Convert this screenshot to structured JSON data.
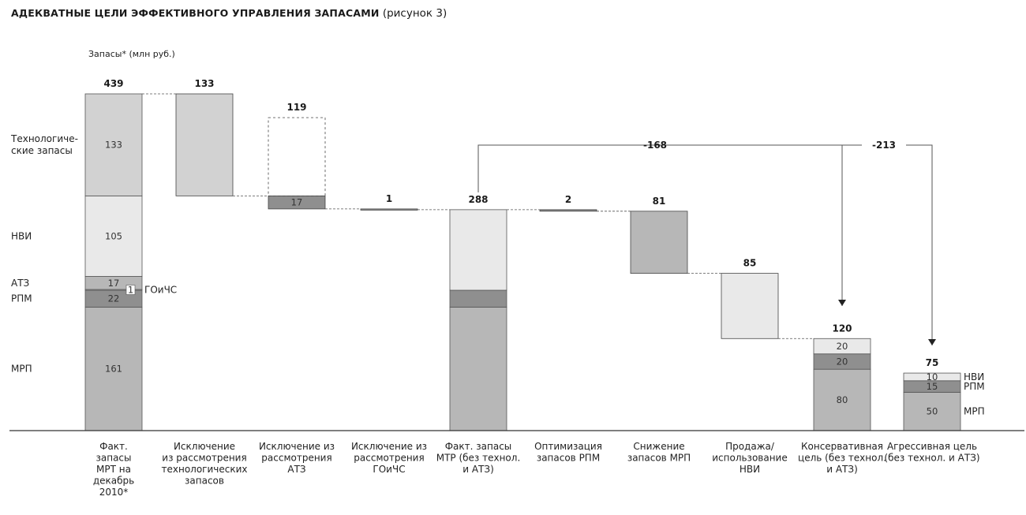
{
  "title": {
    "bold": "Адекватные цели эффективного управления запасами",
    "normal": "(рисунок 3)"
  },
  "colors": {
    "light": "#e9e9e9",
    "mid": "#d2d2d2",
    "medium": "#b7b7b7",
    "dark": "#8f8f8f",
    "line": "#555555",
    "axis": "#333333"
  },
  "chart_data": {
    "type": "waterfall",
    "ylabel": "Запасы* (млн руб.)",
    "row_labels": [
      "Техноло­гиче-\nские запасы",
      "НВИ",
      "АТЗ",
      "РПМ",
      "МРП"
    ],
    "row_labels_lines": [
      [
        "Технологиче-",
        "ские запасы"
      ],
      [
        "НВИ"
      ],
      [
        "АТЗ"
      ],
      [
        "РПМ"
      ],
      [
        "МРП"
      ]
    ],
    "goichs_label": "ГОиЧС",
    "categories": [
      [
        "Факт.",
        "запасы",
        "МРТ на",
        "декабрь",
        "2010*"
      ],
      [
        "Исключение",
        "из рассмотрения",
        "технологических",
        "запасов"
      ],
      [
        "Исключение из",
        "рассмотрения",
        "АТЗ"
      ],
      [
        "Исключение из",
        "рассмотрения",
        "ГОиЧС"
      ],
      [
        "Факт. запасы",
        "МТР (без технол.",
        "и АТЗ)"
      ],
      [
        "Оптимизация",
        "запасов РПМ"
      ],
      [
        "Снижение",
        "запасов МРП"
      ],
      [
        "Продажа/",
        "использование",
        "НВИ"
      ],
      [
        "Консервативная",
        "цель (без технол.",
        "и АТЗ)"
      ],
      [
        "Агрессивная цель",
        "(без технол. и АТЗ)"
      ]
    ],
    "bars": [
      {
        "total": "439",
        "segments": [
          {
            "name": "МРП",
            "value": 161,
            "label": "161",
            "shade": "medium"
          },
          {
            "name": "РПМ",
            "value": 22,
            "label": "22",
            "shade": "dark"
          },
          {
            "name": "ГОиЧС",
            "value": 1,
            "label": "1",
            "shade": "white"
          },
          {
            "name": "АТЗ",
            "value": 17,
            "label": "17",
            "shade": "medium"
          },
          {
            "name": "НВИ",
            "value": 105,
            "label": "105",
            "shade": "light"
          },
          {
            "name": "Технологические запасы",
            "value": 133,
            "label": "133",
            "shade": "mid"
          }
        ]
      },
      {
        "total": "133",
        "floating": [
          306,
          439
        ],
        "shade": "mid"
      },
      {
        "total": "119",
        "floating": [
          289,
          306
        ],
        "shade": "dark",
        "inner": "17",
        "dashed_to": 408
      },
      {
        "total": "1",
        "floating": [
          288,
          289
        ],
        "shade": "dark"
      },
      {
        "total": "288",
        "segments": [
          {
            "name": "МРП",
            "value": 161,
            "shade": "medium"
          },
          {
            "name": "РПМ",
            "value": 22,
            "shade": "dark"
          },
          {
            "name": "НВИ",
            "value": 105,
            "shade": "light"
          }
        ]
      },
      {
        "total": "2",
        "floating": [
          286,
          288
        ],
        "shade": "dark"
      },
      {
        "total": "81",
        "floating": [
          205,
          286
        ],
        "shade": "medium"
      },
      {
        "total": "85",
        "floating": [
          120,
          205
        ],
        "shade": "light"
      },
      {
        "total": "120",
        "segments": [
          {
            "name": "МРП",
            "value": 80,
            "label": "80",
            "shade": "medium"
          },
          {
            "name": "РПМ",
            "value": 20,
            "label": "20",
            "shade": "dark"
          },
          {
            "name": "НВИ",
            "value": 20,
            "label": "20",
            "shade": "light"
          }
        ]
      },
      {
        "total": "75",
        "segments": [
          {
            "name": "МРП",
            "value": 50,
            "label": "50",
            "shade": "medium",
            "side": "МРП"
          },
          {
            "name": "РПМ",
            "value": 15,
            "label": "15",
            "shade": "dark",
            "side": "РПМ"
          },
          {
            "name": "НВИ",
            "value": 10,
            "label": "10",
            "shade": "light",
            "side": "НВИ"
          }
        ]
      }
    ],
    "bridges": [
      {
        "label": "-168",
        "from_bar": 4,
        "to_bar": 8
      },
      {
        "label": "-213",
        "from_bar": 4,
        "to_bar": 9
      }
    ],
    "ylim": [
      0,
      450
    ]
  }
}
